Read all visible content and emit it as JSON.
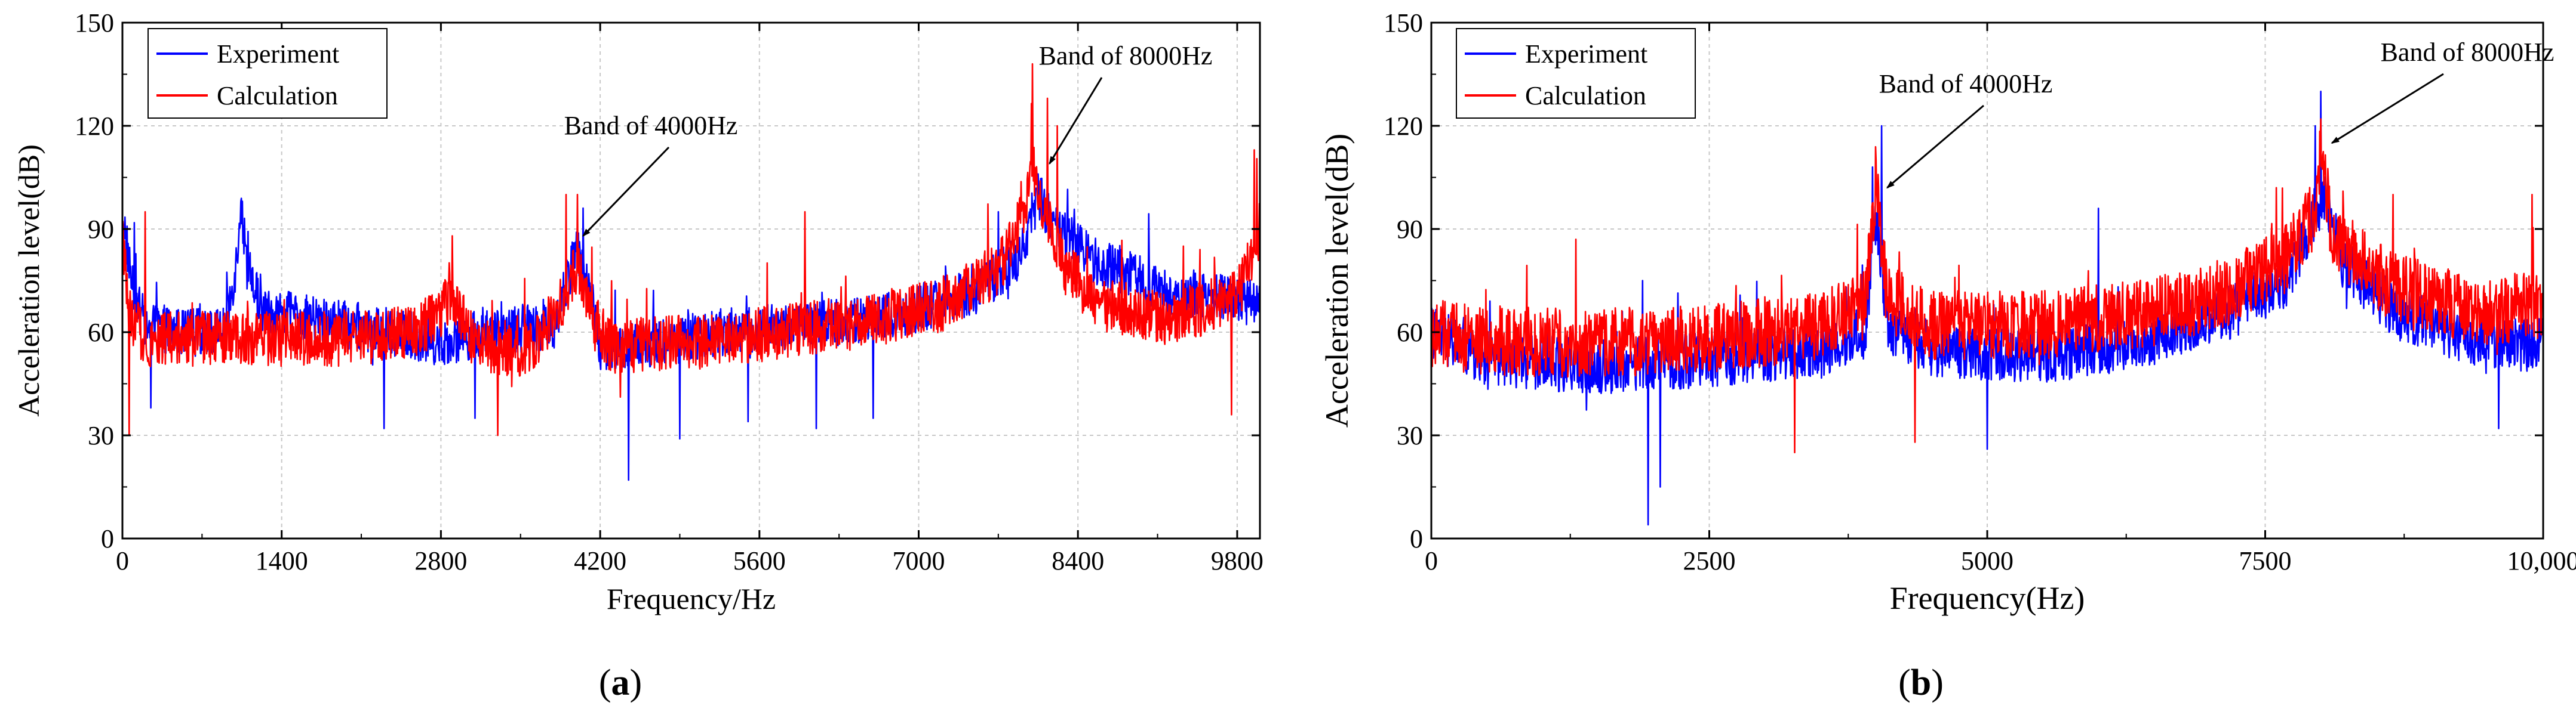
{
  "chart_data": [
    {
      "id": "a",
      "type": "line",
      "caption_letter": "a",
      "caption_open": "(",
      "caption_close": ")",
      "xlabel": "Frequency/Hz",
      "ylabel": "Acceleration level(dB)",
      "xlim": [
        0,
        10000
      ],
      "ylim": [
        0,
        150
      ],
      "xticks": [
        0,
        1400,
        2800,
        4200,
        5600,
        7000,
        8400,
        9800
      ],
      "xtick_labels": [
        "0",
        "1400",
        "2800",
        "4200",
        "5600",
        "7000",
        "8400",
        "9800"
      ],
      "yticks": [
        0,
        30,
        60,
        90,
        120,
        150
      ],
      "ytick_labels": [
        "0",
        "30",
        "60",
        "90",
        "120",
        "150"
      ],
      "grid": true,
      "legend_position": "top-left",
      "series": [
        {
          "name": "Experiment",
          "color": "#0000ff",
          "noise": 7,
          "points": [
            [
              0,
              95
            ],
            [
              80,
              75
            ],
            [
              200,
              62
            ],
            [
              500,
              60
            ],
            [
              900,
              60
            ],
            [
              1000,
              80
            ],
            [
              1040,
              98
            ],
            [
              1100,
              78
            ],
            [
              1250,
              66
            ],
            [
              1600,
              64
            ],
            [
              2400,
              60
            ],
            [
              2800,
              57
            ],
            [
              3200,
              60
            ],
            [
              3800,
              62
            ],
            [
              4000,
              85
            ],
            [
              4150,
              66
            ],
            [
              4200,
              55
            ],
            [
              4600,
              56
            ],
            [
              5200,
              60
            ],
            [
              6000,
              62
            ],
            [
              6800,
              65
            ],
            [
              7500,
              72
            ],
            [
              7900,
              82
            ],
            [
              8050,
              100
            ],
            [
              8200,
              90
            ],
            [
              8600,
              80
            ],
            [
              9200,
              72
            ],
            [
              9600,
              70
            ],
            [
              10000,
              68
            ]
          ],
          "spikes": [
            [
              1040,
              98
            ],
            [
              4450,
              17
            ],
            [
              4900,
              29
            ],
            [
              5500,
              34
            ],
            [
              6100,
              32
            ],
            [
              6600,
              35
            ],
            [
              2300,
              32
            ],
            [
              250,
              38
            ],
            [
              8050,
              106
            ],
            [
              7700,
              95
            ],
            [
              3100,
              35
            ]
          ]
        },
        {
          "name": "Calculation",
          "color": "#ff0000",
          "noise": 8,
          "points": [
            [
              0,
              90
            ],
            [
              60,
              65
            ],
            [
              200,
              58
            ],
            [
              800,
              58
            ],
            [
              1500,
              58
            ],
            [
              2000,
              58
            ],
            [
              2600,
              60
            ],
            [
              2900,
              70
            ],
            [
              3100,
              56
            ],
            [
              3600,
              55
            ],
            [
              3900,
              70
            ],
            [
              4000,
              80
            ],
            [
              4150,
              62
            ],
            [
              4300,
              56
            ],
            [
              5000,
              57
            ],
            [
              5800,
              60
            ],
            [
              6500,
              63
            ],
            [
              7200,
              68
            ],
            [
              7700,
              78
            ],
            [
              7950,
              96
            ],
            [
              8000,
              110
            ],
            [
              8100,
              95
            ],
            [
              8300,
              78
            ],
            [
              8600,
              68
            ],
            [
              9200,
              64
            ],
            [
              9800,
              70
            ],
            [
              10000,
              90
            ]
          ],
          "spikes": [
            [
              8000,
              138
            ],
            [
              4000,
              100
            ],
            [
              3900,
              100
            ],
            [
              6000,
              95
            ],
            [
              2900,
              88
            ],
            [
              200,
              95
            ],
            [
              9950,
              113
            ],
            [
              9750,
              36
            ],
            [
              3300,
              30
            ],
            [
              60,
              30
            ],
            [
              8130,
              128
            ],
            [
              8220,
              120
            ]
          ]
        }
      ],
      "annotations": [
        {
          "text": "Band of 4000Hz",
          "target_x": 4050,
          "target_y": 88
        },
        {
          "text": "Band of 8000Hz",
          "target_x": 8150,
          "target_y": 109
        }
      ]
    },
    {
      "id": "b",
      "type": "line",
      "caption_letter": "b",
      "caption_open": "(",
      "caption_close": ")",
      "xlabel": "Frequency(Hz)",
      "ylabel": "Acceleration level(dB)",
      "xlim": [
        0,
        10000
      ],
      "ylim": [
        0,
        150
      ],
      "xticks": [
        0,
        2500,
        5000,
        7500,
        10000
      ],
      "xtick_labels": [
        "0",
        "2500",
        "5000",
        "7500",
        "10,000"
      ],
      "yticks": [
        0,
        30,
        60,
        90,
        120,
        150
      ],
      "ytick_labels": [
        "0",
        "30",
        "60",
        "90",
        "120",
        "150"
      ],
      "grid": true,
      "legend_position": "top-left",
      "series": [
        {
          "name": "Experiment",
          "color": "#0000ff",
          "noise": 8,
          "points": [
            [
              0,
              60
            ],
            [
              500,
              52
            ],
            [
              1500,
              50
            ],
            [
              2500,
              52
            ],
            [
              3500,
              55
            ],
            [
              3900,
              60
            ],
            [
              4000,
              95
            ],
            [
              4100,
              62
            ],
            [
              4500,
              55
            ],
            [
              5500,
              53
            ],
            [
              6500,
              58
            ],
            [
              7200,
              66
            ],
            [
              7700,
              75
            ],
            [
              7950,
              95
            ],
            [
              8050,
              100
            ],
            [
              8200,
              80
            ],
            [
              8700,
              65
            ],
            [
              9400,
              58
            ],
            [
              10000,
              56
            ]
          ],
          "spikes": [
            [
              4050,
              120
            ],
            [
              3970,
              108
            ],
            [
              8000,
              130
            ],
            [
              7950,
              120
            ],
            [
              6000,
              96
            ],
            [
              1950,
              4
            ],
            [
              2060,
              15
            ],
            [
              1900,
              75
            ],
            [
              5000,
              26
            ],
            [
              9600,
              32
            ]
          ]
        },
        {
          "name": "Calculation",
          "color": "#ff0000",
          "noise": 10,
          "points": [
            [
              0,
              60
            ],
            [
              500,
              57
            ],
            [
              1500,
              57
            ],
            [
              2500,
              58
            ],
            [
              3500,
              62
            ],
            [
              3900,
              68
            ],
            [
              4000,
              102
            ],
            [
              4100,
              70
            ],
            [
              4500,
              62
            ],
            [
              5500,
              62
            ],
            [
              6500,
              66
            ],
            [
              7200,
              72
            ],
            [
              7700,
              82
            ],
            [
              7950,
              95
            ],
            [
              8000,
              115
            ],
            [
              8100,
              88
            ],
            [
              8600,
              74
            ],
            [
              9400,
              66
            ],
            [
              10000,
              68
            ]
          ],
          "spikes": [
            [
              4000,
              110
            ],
            [
              3270,
              25
            ],
            [
              8000,
              122
            ],
            [
              8650,
              100
            ],
            [
              8200,
              101
            ],
            [
              9900,
              100
            ],
            [
              4350,
              28
            ],
            [
              7600,
              102
            ],
            [
              1300,
              87
            ]
          ]
        }
      ],
      "annotations": [
        {
          "text": "Band of 4000Hz",
          "target_x": 4100,
          "target_y": 102
        },
        {
          "text": "Band of 8000Hz",
          "target_x": 8100,
          "target_y": 115
        }
      ]
    }
  ]
}
